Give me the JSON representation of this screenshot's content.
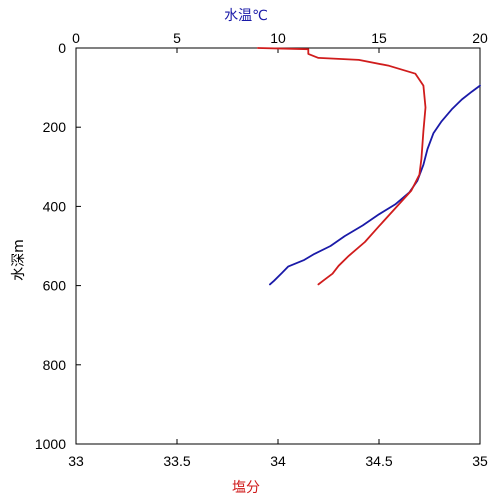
{
  "chart_data": {
    "type": "line",
    "y_axis": {
      "label": "水深m",
      "ticks": [
        0,
        200,
        400,
        600,
        800,
        1000
      ],
      "ylim": [
        0,
        1000
      ],
      "inverted": true
    },
    "x_top_axis": {
      "label": "水温℃",
      "ticks": [
        0,
        5,
        10,
        15,
        20
      ],
      "xlim": [
        0,
        20
      ],
      "color": "#1a1aa8"
    },
    "x_bottom_axis": {
      "label": "塩分",
      "ticks": [
        33,
        33.5,
        34,
        34.5,
        35
      ],
      "xlim": [
        33,
        35
      ],
      "color": "#d01c1c"
    },
    "grid": false,
    "legend": "none",
    "series": [
      {
        "axis": "top",
        "color": "#1a1aa8",
        "points": [
          {
            "x": 20.0,
            "y": 95
          },
          {
            "x": 19.6,
            "y": 110
          },
          {
            "x": 19.1,
            "y": 130
          },
          {
            "x": 18.6,
            "y": 155
          },
          {
            "x": 18.1,
            "y": 185
          },
          {
            "x": 17.7,
            "y": 215
          },
          {
            "x": 17.4,
            "y": 255
          },
          {
            "x": 17.2,
            "y": 295
          },
          {
            "x": 16.9,
            "y": 335
          },
          {
            "x": 16.5,
            "y": 365
          },
          {
            "x": 15.8,
            "y": 395
          },
          {
            "x": 15.0,
            "y": 420
          },
          {
            "x": 14.2,
            "y": 448
          },
          {
            "x": 13.3,
            "y": 475
          },
          {
            "x": 12.6,
            "y": 500
          },
          {
            "x": 11.8,
            "y": 520
          },
          {
            "x": 11.3,
            "y": 535
          },
          {
            "x": 10.5,
            "y": 552
          },
          {
            "x": 10.2,
            "y": 568
          },
          {
            "x": 9.8,
            "y": 588
          },
          {
            "x": 9.6,
            "y": 597
          }
        ]
      },
      {
        "axis": "bottom",
        "color": "#d01c1c",
        "points": [
          {
            "x": 33.9,
            "y": 0
          },
          {
            "x": 34.15,
            "y": 3
          },
          {
            "x": 34.15,
            "y": 15
          },
          {
            "x": 34.2,
            "y": 25
          },
          {
            "x": 34.4,
            "y": 30
          },
          {
            "x": 34.55,
            "y": 45
          },
          {
            "x": 34.68,
            "y": 65
          },
          {
            "x": 34.72,
            "y": 95
          },
          {
            "x": 34.73,
            "y": 150
          },
          {
            "x": 34.72,
            "y": 210
          },
          {
            "x": 34.71,
            "y": 280
          },
          {
            "x": 34.7,
            "y": 320
          },
          {
            "x": 34.66,
            "y": 360
          },
          {
            "x": 34.58,
            "y": 405
          },
          {
            "x": 34.5,
            "y": 450
          },
          {
            "x": 34.43,
            "y": 490
          },
          {
            "x": 34.35,
            "y": 525
          },
          {
            "x": 34.3,
            "y": 550
          },
          {
            "x": 34.27,
            "y": 570
          },
          {
            "x": 34.23,
            "y": 585
          },
          {
            "x": 34.2,
            "y": 597
          }
        ]
      }
    ]
  }
}
